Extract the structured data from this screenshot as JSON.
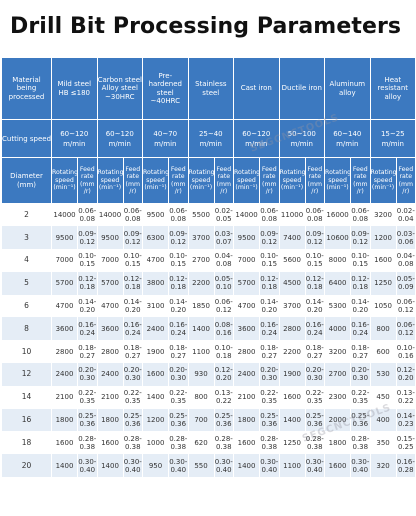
{
  "title": "Drill Bit Processing Parameters",
  "header": {
    "material_label": "Material being processed",
    "speed_label": "Cutting speed",
    "diameter_label": "Diameter (mm)",
    "rot_label": "Rotating speed (min⁻¹)",
    "feed_label": "Feed rate (mm /r)"
  },
  "materials": [
    {
      "name": "Mild steel HB ≤180",
      "speed": "60~120 m/min"
    },
    {
      "name": "Carbon steel Alloy steel ~30HRC",
      "speed": "60~120 m/min"
    },
    {
      "name": "Pre-hardened steel ~40HRC",
      "speed": "40~70 m/min"
    },
    {
      "name": "Stainless steel",
      "speed": "25~40 m/min"
    },
    {
      "name": "Cast iron",
      "speed": "60~120 m/min"
    },
    {
      "name": "Ductile iron",
      "speed": "50~100 m/min"
    },
    {
      "name": "Aluminum alloy",
      "speed": "60~140 m/min"
    },
    {
      "name": "Heat resistant alloy",
      "speed": "15~25 m/min"
    }
  ],
  "rows": [
    {
      "d": "2",
      "v": [
        [
          "14000",
          "0.06-",
          "0.08"
        ],
        [
          "14000",
          "0.06-",
          "0.08"
        ],
        [
          "9500",
          "0.06-",
          "0.08"
        ],
        [
          "5500",
          "0.02-",
          "0.05"
        ],
        [
          "14000",
          "0.06-",
          "0.08"
        ],
        [
          "11000",
          "0.06-",
          "0.08"
        ],
        [
          "16000",
          "0.06-",
          "0.08"
        ],
        [
          "3200",
          "0.02-",
          "0.04"
        ]
      ]
    },
    {
      "d": "3",
      "v": [
        [
          "9500",
          "0.09-",
          "0.12"
        ],
        [
          "9500",
          "0.09-",
          "0.12"
        ],
        [
          "6300",
          "0.09-",
          "0.12"
        ],
        [
          "3700",
          "0.03-",
          "0.07"
        ],
        [
          "9500",
          "0.09-",
          "0.12"
        ],
        [
          "7400",
          "0.09-",
          "0.12"
        ],
        [
          "10600",
          "0.09-",
          "0.12"
        ],
        [
          "1200",
          "0.03-",
          "0.06"
        ]
      ]
    },
    {
      "d": "4",
      "v": [
        [
          "7000",
          "0.10-",
          "0.15"
        ],
        [
          "7000",
          "0.10-",
          "0.15"
        ],
        [
          "4700",
          "0.10-",
          "0.15"
        ],
        [
          "2700",
          "0.04-",
          "0.08"
        ],
        [
          "7000",
          "0.10-",
          "0.15"
        ],
        [
          "5600",
          "0.10-",
          "0.15"
        ],
        [
          "8000",
          "0.10-",
          "0.15"
        ],
        [
          "1600",
          "0.04-",
          "0.08"
        ]
      ]
    },
    {
      "d": "5",
      "v": [
        [
          "5700",
          "0.12-",
          "0.18"
        ],
        [
          "5700",
          "0.12-",
          "0.18"
        ],
        [
          "3800",
          "0.12-",
          "0.18"
        ],
        [
          "2200",
          "0.05-",
          "0.10"
        ],
        [
          "5700",
          "0.12-",
          "0.18"
        ],
        [
          "4500",
          "0.12-",
          "0.18"
        ],
        [
          "6400",
          "0.12-",
          "0.18"
        ],
        [
          "1250",
          "0.05-",
          "0.09"
        ]
      ]
    },
    {
      "d": "6",
      "v": [
        [
          "4700",
          "0.14-",
          "0.20"
        ],
        [
          "4700",
          "0.14-",
          "0.20"
        ],
        [
          "3100",
          "0.14-",
          "0.20"
        ],
        [
          "1850",
          "0.06-",
          "0.12"
        ],
        [
          "4700",
          "0.14-",
          "0.20"
        ],
        [
          "3700",
          "0.14-",
          "0.20"
        ],
        [
          "5300",
          "0.14-",
          "0.20"
        ],
        [
          "1050",
          "0.06-",
          "0.12"
        ]
      ]
    },
    {
      "d": "8",
      "v": [
        [
          "3600",
          "0.16-",
          "0.24"
        ],
        [
          "3600",
          "0.16-",
          "0.24"
        ],
        [
          "2400",
          "0.16-",
          "0.24"
        ],
        [
          "1400",
          "0.08-",
          "0.16"
        ],
        [
          "3600",
          "0.16-",
          "0.24"
        ],
        [
          "2800",
          "0.16-",
          "0.24"
        ],
        [
          "4000",
          "0.16-",
          "0.24"
        ],
        [
          "800",
          "0.06-",
          "0.12"
        ]
      ]
    },
    {
      "d": "10",
      "v": [
        [
          "2800",
          "0.18-",
          "0.27"
        ],
        [
          "2800",
          "0.18-",
          "0.27"
        ],
        [
          "1900",
          "0.18-",
          "0.27"
        ],
        [
          "1100",
          "0.10-",
          "0.18"
        ],
        [
          "2800",
          "0.18-",
          "0.27"
        ],
        [
          "2200",
          "0.18-",
          "0.27"
        ],
        [
          "3200",
          "0.18-",
          "0.27"
        ],
        [
          "600",
          "0.10-",
          "0.16"
        ]
      ]
    },
    {
      "d": "12",
      "v": [
        [
          "2400",
          "0.20-",
          "0.30"
        ],
        [
          "2400",
          "0.20-",
          "0.30"
        ],
        [
          "1600",
          "0.20-",
          "0.30"
        ],
        [
          "930",
          "0.12-",
          "0.20"
        ],
        [
          "2400",
          "0.20-",
          "0.30"
        ],
        [
          "1900",
          "0.20-",
          "0.30"
        ],
        [
          "2700",
          "0.20-",
          "0.30"
        ],
        [
          "530",
          "0.12-",
          "0.20"
        ]
      ]
    },
    {
      "d": "14",
      "v": [
        [
          "2100",
          "0.22-",
          "0.35"
        ],
        [
          "2100",
          "0.22-",
          "0.35"
        ],
        [
          "1400",
          "0.22-",
          "0.35"
        ],
        [
          "800",
          "0.13-",
          "0.22"
        ],
        [
          "2100",
          "0.22-",
          "0.35"
        ],
        [
          "1600",
          "0.22-",
          "0.35"
        ],
        [
          "2300",
          "0.22-",
          "0.35"
        ],
        [
          "450",
          "0.13-",
          "0.22"
        ]
      ]
    },
    {
      "d": "16",
      "v": [
        [
          "1800",
          "0.25-",
          "0.36"
        ],
        [
          "1800",
          "0.25-",
          "0.36"
        ],
        [
          "1200",
          "0.25-",
          "0.36"
        ],
        [
          "700",
          "0.25-",
          "0.36"
        ],
        [
          "1800",
          "0.25-",
          "0.36"
        ],
        [
          "1400",
          "0.25-",
          "0.36"
        ],
        [
          "2000",
          "0.25-",
          "0.36"
        ],
        [
          "400",
          "0.14-",
          "0.23"
        ]
      ]
    },
    {
      "d": "18",
      "v": [
        [
          "1600",
          "0.28-",
          "0.38"
        ],
        [
          "1600",
          "0.28-",
          "0.38"
        ],
        [
          "1000",
          "0.28-",
          "0.38"
        ],
        [
          "620",
          "0.28-",
          "0.38"
        ],
        [
          "1600",
          "0.28-",
          "0.38"
        ],
        [
          "1250",
          "0.28-",
          "0.38"
        ],
        [
          "1800",
          "0.28-",
          "0.38"
        ],
        [
          "350",
          "0.15-",
          "0.25"
        ]
      ]
    },
    {
      "d": "20",
      "v": [
        [
          "1400",
          "0.30-",
          "0.40"
        ],
        [
          "1400",
          "0.30-",
          "0.40"
        ],
        [
          "950",
          "0.30-",
          "0.40"
        ],
        [
          "550",
          "0.30-",
          "0.40"
        ],
        [
          "1400",
          "0.30-",
          "0.40"
        ],
        [
          "1100",
          "0.30-",
          "0.40"
        ],
        [
          "1600",
          "0.30-",
          "0.40"
        ],
        [
          "320",
          "0.16-",
          "0.28"
        ]
      ]
    }
  ]
}
